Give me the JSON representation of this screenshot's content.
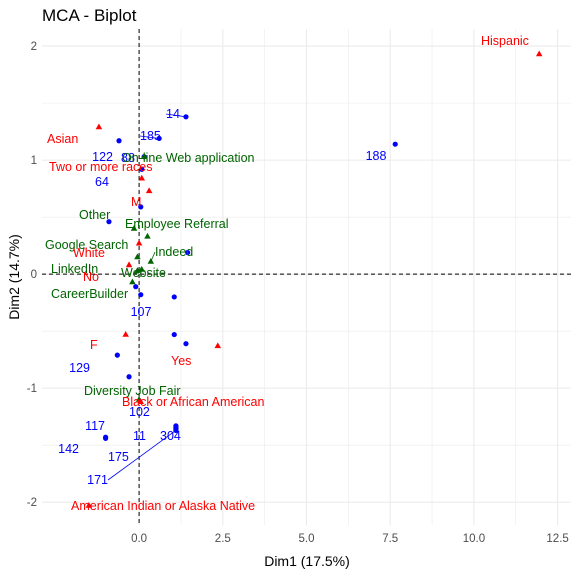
{
  "chart_data": {
    "type": "scatter",
    "title": "MCA - Biplot",
    "xlabel": "Dim1 (17.5%)",
    "ylabel": "Dim2 (14.7%)",
    "xlim": [
      -2.9,
      12.9
    ],
    "ylim": [
      -2.2,
      2.15
    ],
    "x_ticks": [
      0.0,
      2.5,
      5.0,
      7.5,
      10.0,
      12.5
    ],
    "x_tick_labels": [
      "0.0",
      "2.5",
      "5.0",
      "7.5",
      "10.0",
      "12.5"
    ],
    "y_ticks": [
      -2,
      -1,
      0,
      1,
      2
    ],
    "y_tick_labels": [
      "-2",
      "-1",
      "0",
      "1",
      "2"
    ],
    "grid": true,
    "reference_lines": "dashed lines at x = 0 and y = 0",
    "colors": {
      "individuals": "#0000ff",
      "source": "#006400",
      "demographics": "#ff0000",
      "axis_text": "#4d4d4d",
      "grid": "#ebebeb"
    },
    "individuals": [
      {
        "label": "14",
        "x": 1.4,
        "y": 1.38
      },
      {
        "label": "185",
        "x": 0.6,
        "y": 1.19
      },
      {
        "label": "122",
        "x": -0.6,
        "y": 1.17
      },
      {
        "label": "88",
        "x": 0.15,
        "y": 1.03
      },
      {
        "label": "188",
        "x": 7.65,
        "y": 1.14
      },
      {
        "label": "64",
        "x": 0.08,
        "y": 0.92
      },
      {
        "label": "",
        "x": -0.9,
        "y": 0.46
      },
      {
        "label": "",
        "x": 0.05,
        "y": 0.59
      },
      {
        "label": "",
        "x": 1.45,
        "y": 0.19
      },
      {
        "label": "",
        "x": -0.1,
        "y": -0.11
      },
      {
        "label": "",
        "x": 0.05,
        "y": -0.18
      },
      {
        "label": "107",
        "x": 1.05,
        "y": -0.2
      },
      {
        "label": "",
        "x": 1.05,
        "y": -0.53
      },
      {
        "label": "",
        "x": 1.4,
        "y": -0.61
      },
      {
        "label": "129",
        "x": -0.65,
        "y": -0.71
      },
      {
        "label": "",
        "x": -0.3,
        "y": -0.9
      },
      {
        "label": "117",
        "x": -1.0,
        "y": -1.43
      },
      {
        "label": "142",
        "x": -1.0,
        "y": -1.44
      },
      {
        "label": "304",
        "x": 1.1,
        "y": -1.33
      },
      {
        "label": "11",
        "x": 1.1,
        "y": -1.34
      },
      {
        "label": "175",
        "x": 1.1,
        "y": -1.35
      },
      {
        "label": "102",
        "x": 1.1,
        "y": -1.36
      },
      {
        "label": "171",
        "x": 1.1,
        "y": -1.37
      }
    ],
    "source_categories": [
      {
        "label": "On-line Web application",
        "x": 0.15,
        "y": 1.03
      },
      {
        "label": "Employee Referral",
        "x": 0.25,
        "y": 0.33
      },
      {
        "label": "Other",
        "x": -0.15,
        "y": 0.4
      },
      {
        "label": "Google Search",
        "x": -0.05,
        "y": 0.15
      },
      {
        "label": "Indeed",
        "x": 0.35,
        "y": 0.11
      },
      {
        "label": "LinkedIn",
        "x": -0.05,
        "y": 0.03
      },
      {
        "label": "Website",
        "x": 0.08,
        "y": 0.04
      },
      {
        "label": "CareerBuilder",
        "x": -0.2,
        "y": -0.07
      },
      {
        "label": "Diversity Job Fair",
        "x": 0.0,
        "y": -1.1
      }
    ],
    "demographic_categories": [
      {
        "label": "Hispanic",
        "x": 11.95,
        "y": 1.93
      },
      {
        "label": "Asian",
        "x": -1.2,
        "y": 1.29
      },
      {
        "label": "Two or more races",
        "x": 0.08,
        "y": 0.84
      },
      {
        "label": "M",
        "x": 0.3,
        "y": 0.73
      },
      {
        "label": "White",
        "x": 0.0,
        "y": 0.27
      },
      {
        "label": "No",
        "x": -0.3,
        "y": 0.08
      },
      {
        "label": "F",
        "x": -0.4,
        "y": -0.53
      },
      {
        "label": "Yes",
        "x": 2.35,
        "y": -0.63
      },
      {
        "label": "Black or African American",
        "x": 0.05,
        "y": -1.12
      },
      {
        "label": "American Indian or Alaska Native",
        "x": -1.5,
        "y": -2.03
      }
    ]
  }
}
